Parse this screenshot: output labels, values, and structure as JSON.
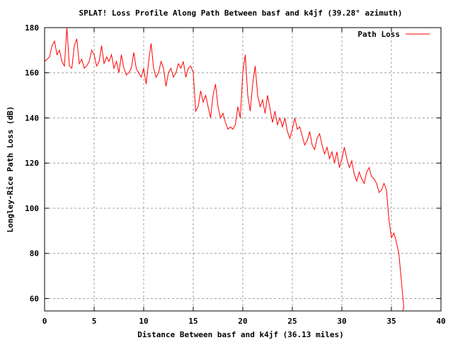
{
  "chart_data": {
    "type": "line",
    "title": "SPLAT! Loss Profile Along Path Between basf and k4jf (39.28° azimuth)",
    "xlabel": "Distance Between basf and k4jf (36.13 miles)",
    "ylabel": "Longley-Rice Path Loss (dB)",
    "xlim": [
      0,
      40
    ],
    "ylim": [
      54.5,
      180
    ],
    "xticks": [
      "0",
      "5",
      "10",
      "15",
      "20",
      "25",
      "30",
      "35",
      "40"
    ],
    "xtick_values": [
      0,
      5,
      10,
      15,
      20,
      25,
      30,
      35,
      40
    ],
    "yticks": [
      "60",
      "80",
      "100",
      "120",
      "140",
      "160",
      "180"
    ],
    "ytick_values": [
      60,
      80,
      100,
      120,
      140,
      160,
      180
    ],
    "grid": true,
    "legend": {
      "position": "top-right",
      "entries": [
        "Path Loss"
      ]
    },
    "series": [
      {
        "name": "Path Loss",
        "color": "#ff0000",
        "x_step": 0.25,
        "final_x": 36.13,
        "values": [
          165,
          166,
          167,
          172,
          174,
          168,
          170,
          165,
          163,
          180,
          163,
          162,
          172,
          175,
          164,
          166,
          162,
          163,
          165,
          170,
          168,
          163,
          165,
          172,
          164,
          167,
          165,
          168,
          162,
          165,
          160,
          168,
          162,
          159,
          160,
          162,
          169,
          162,
          160,
          158,
          162,
          155,
          165,
          173,
          162,
          158,
          160,
          165,
          162,
          154,
          160,
          162,
          158,
          160,
          164,
          162,
          165,
          158,
          162,
          163,
          160,
          143,
          145,
          152,
          147,
          150,
          145,
          140,
          150,
          155,
          145,
          140,
          142,
          138,
          135,
          136,
          135,
          137,
          145,
          140,
          160,
          168,
          150,
          143,
          155,
          163,
          150,
          145,
          148,
          142,
          150,
          144,
          138,
          143,
          137,
          140,
          136,
          140,
          134,
          131,
          135,
          140,
          135,
          136,
          132,
          128,
          130,
          134,
          128,
          126,
          131,
          133,
          128,
          124,
          127,
          122,
          125,
          120,
          125,
          118,
          122,
          127,
          122,
          118,
          121,
          115,
          112,
          116,
          113,
          111,
          116,
          118,
          114,
          113,
          111,
          107,
          108,
          111,
          108,
          95,
          87,
          89,
          85,
          80,
          68,
          56,
          54
        ]
      }
    ]
  }
}
